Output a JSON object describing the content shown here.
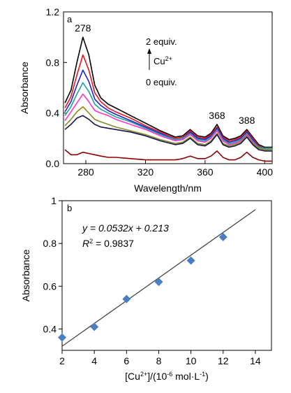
{
  "chart_data": [
    {
      "panel": "a",
      "type": "line",
      "xlabel": "Wavelength/nm",
      "ylabel": "Absorbance",
      "xlim": [
        265,
        405
      ],
      "ylim": [
        0,
        1.2
      ],
      "x_ticks": [
        280,
        320,
        360,
        400
      ],
      "y_ticks": [
        0.0,
        0.4,
        0.8,
        1.2
      ],
      "y_tick_labels": [
        "0.0",
        "0.4",
        "0.8",
        "1.2"
      ],
      "grid": false,
      "peak_labels": [
        {
          "text": "278",
          "x": 278
        },
        {
          "text": "368",
          "x": 368
        },
        {
          "text": "388",
          "x": 388
        }
      ],
      "annotation": {
        "top_label": "2 equiv.",
        "ion_label": "Cu",
        "ion_charge": "2+",
        "bottom_label": "0 equiv."
      },
      "x": [
        266,
        270,
        274,
        278,
        282,
        286,
        290,
        295,
        300,
        310,
        320,
        330,
        340,
        345,
        350,
        355,
        360,
        364,
        368,
        372,
        376,
        380,
        384,
        388,
        392,
        396,
        400,
        405
      ],
      "series": [
        {
          "color": "#000000",
          "values": [
            0.48,
            0.58,
            0.8,
            1.0,
            0.86,
            0.62,
            0.52,
            0.47,
            0.44,
            0.38,
            0.32,
            0.26,
            0.21,
            0.22,
            0.27,
            0.22,
            0.21,
            0.24,
            0.31,
            0.22,
            0.19,
            0.2,
            0.22,
            0.27,
            0.21,
            0.15,
            0.13,
            0.13
          ]
        },
        {
          "color": "#e8141e",
          "values": [
            0.44,
            0.53,
            0.7,
            0.86,
            0.74,
            0.56,
            0.49,
            0.44,
            0.41,
            0.36,
            0.3,
            0.25,
            0.2,
            0.21,
            0.26,
            0.21,
            0.2,
            0.23,
            0.29,
            0.21,
            0.18,
            0.19,
            0.21,
            0.26,
            0.2,
            0.14,
            0.12,
            0.12
          ]
        },
        {
          "color": "#2222c8",
          "values": [
            0.41,
            0.49,
            0.62,
            0.74,
            0.65,
            0.51,
            0.46,
            0.42,
            0.39,
            0.34,
            0.29,
            0.24,
            0.19,
            0.2,
            0.25,
            0.2,
            0.19,
            0.22,
            0.28,
            0.2,
            0.17,
            0.18,
            0.2,
            0.25,
            0.19,
            0.13,
            0.12,
            0.12
          ]
        },
        {
          "color": "#1aa0a0",
          "values": [
            0.38,
            0.45,
            0.55,
            0.64,
            0.57,
            0.47,
            0.43,
            0.4,
            0.37,
            0.33,
            0.28,
            0.23,
            0.19,
            0.2,
            0.24,
            0.19,
            0.18,
            0.21,
            0.27,
            0.19,
            0.16,
            0.17,
            0.19,
            0.24,
            0.18,
            0.13,
            0.12,
            0.12
          ]
        },
        {
          "color": "#ff33cc",
          "values": [
            0.34,
            0.41,
            0.48,
            0.55,
            0.49,
            0.42,
            0.4,
            0.38,
            0.35,
            0.31,
            0.27,
            0.22,
            0.18,
            0.19,
            0.23,
            0.18,
            0.17,
            0.2,
            0.26,
            0.18,
            0.15,
            0.16,
            0.18,
            0.23,
            0.17,
            0.12,
            0.11,
            0.11
          ]
        },
        {
          "color": "#8a8a20",
          "values": [
            0.3,
            0.35,
            0.41,
            0.45,
            0.4,
            0.35,
            0.33,
            0.31,
            0.29,
            0.26,
            0.23,
            0.19,
            0.16,
            0.17,
            0.21,
            0.16,
            0.15,
            0.18,
            0.24,
            0.16,
            0.14,
            0.15,
            0.17,
            0.22,
            0.16,
            0.12,
            0.11,
            0.11
          ]
        },
        {
          "color": "#141450",
          "values": [
            0.27,
            0.31,
            0.36,
            0.38,
            0.35,
            0.31,
            0.29,
            0.28,
            0.27,
            0.25,
            0.22,
            0.18,
            0.15,
            0.16,
            0.2,
            0.15,
            0.14,
            0.17,
            0.23,
            0.15,
            0.13,
            0.14,
            0.16,
            0.21,
            0.15,
            0.11,
            0.1,
            0.1
          ]
        },
        {
          "color": "#8b0000",
          "values": [
            0.11,
            0.07,
            0.07,
            0.09,
            0.08,
            0.07,
            0.06,
            0.05,
            0.05,
            0.04,
            0.03,
            0.03,
            0.03,
            0.04,
            0.06,
            0.04,
            0.04,
            0.06,
            0.1,
            0.05,
            0.03,
            0.03,
            0.05,
            0.09,
            0.05,
            0.03,
            0.02,
            0.02
          ]
        }
      ]
    },
    {
      "panel": "b",
      "type": "scatter",
      "xlabel_main": "[Cu",
      "xlabel_sup1": "2+",
      "xlabel_mid": "]/(10",
      "xlabel_sup2": "-6",
      "xlabel_unit": " mol·L",
      "xlabel_sup3": "-1",
      "xlabel_end": ")",
      "ylabel": "Absorbance",
      "xlim": [
        2,
        15
      ],
      "ylim": [
        0.3,
        1.0
      ],
      "x_ticks": [
        2,
        4,
        6,
        8,
        10,
        12,
        14
      ],
      "y_ticks": [
        0.4,
        0.6,
        0.8,
        1.0
      ],
      "y_tick_labels": [
        "0.4",
        "0.6",
        "0.8",
        "1"
      ],
      "grid": false,
      "equation": "y = 0.0532x + 0.213",
      "r2_label": "R",
      "r2_sup": "2",
      "r2_value": " = 0.9837",
      "marker_color": "#4a7fc4",
      "points": {
        "x": [
          2,
          4,
          6,
          8,
          10,
          12
        ],
        "y": [
          0.36,
          0.41,
          0.54,
          0.62,
          0.72,
          0.83
        ]
      },
      "fit": {
        "slope": 0.0532,
        "intercept": 0.213,
        "x_range": [
          2,
          14
        ]
      }
    }
  ]
}
